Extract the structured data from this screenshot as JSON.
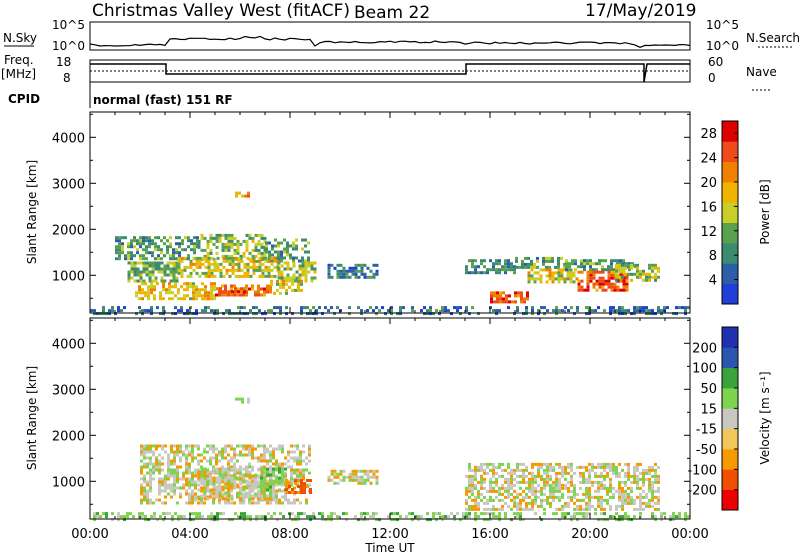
{
  "header": {
    "station": "Christmas Valley West (fitACF)",
    "beam": "Beam 22",
    "date": "17/May/2019"
  },
  "sky_panel": {
    "left_label": "N.Sky",
    "right_label": "N.Search",
    "left_ticks": [
      "10^5",
      "10^0"
    ],
    "right_ticks": [
      "10^5",
      "10^0"
    ]
  },
  "freq_panel": {
    "left_label_1": "Freq.",
    "left_label_2": "[MHz]",
    "right_label": "Nave",
    "left_ticks": [
      "18",
      "8"
    ],
    "right_ticks": [
      "60",
      "0"
    ]
  },
  "cpid": {
    "label": "CPID",
    "value": "normal (fast) 151 RF"
  },
  "colors": {
    "power": [
      "#1f3fd6",
      "#2d5ea8",
      "#3b8c6e",
      "#59a14f",
      "#c8cf2a",
      "#f0b400",
      "#f08000",
      "#ee4a1a",
      "#dd0000"
    ],
    "velocity": [
      "#ee0000",
      "#f05000",
      "#f59a00",
      "#f2c75a",
      "#c8c8c0",
      "#7ed34f",
      "#3aa33c",
      "#2a56b0",
      "#2030b0"
    ]
  },
  "chart_data": [
    {
      "type": "heatmap",
      "name": "power",
      "ylabel": "Slant Range [km]",
      "xlabel": "",
      "x_ticks": [
        "00:00",
        "04:00",
        "08:00",
        "12:00",
        "16:00",
        "20:00",
        "00:00"
      ],
      "y_ticks": [
        "1000",
        "2000",
        "3000",
        "4000"
      ],
      "y_tick_values": [
        1000,
        2000,
        3000,
        4000
      ],
      "xlim_hours": [
        0,
        24
      ],
      "ylim_km": [
        180,
        4550
      ],
      "colorbar": {
        "label": "Power [dB]",
        "ticks": [
          "4",
          "8",
          "12",
          "16",
          "20",
          "24",
          "28"
        ],
        "tick_values": [
          4,
          8,
          12,
          16,
          20,
          24,
          28
        ],
        "range": [
          0,
          30
        ]
      },
      "regions": [
        {
          "t0": 1.0,
          "t1": 4.3,
          "r0": 1350,
          "r1": 1850,
          "level": 10
        },
        {
          "t0": 4.3,
          "t1": 7.0,
          "r0": 1350,
          "r1": 1900,
          "level": 13
        },
        {
          "t0": 7.0,
          "t1": 8.8,
          "r0": 1300,
          "r1": 1800,
          "level": 11
        },
        {
          "t0": 1.5,
          "t1": 3.5,
          "r0": 850,
          "r1": 1300,
          "level": 12
        },
        {
          "t0": 3.5,
          "t1": 7.5,
          "r0": 1000,
          "r1": 1400,
          "level": 16
        },
        {
          "t0": 7.5,
          "t1": 9.0,
          "r0": 900,
          "r1": 1300,
          "level": 14
        },
        {
          "t0": 1.8,
          "t1": 5.0,
          "r0": 500,
          "r1": 850,
          "level": 18
        },
        {
          "t0": 5.0,
          "t1": 7.2,
          "r0": 550,
          "r1": 800,
          "level": 22
        },
        {
          "t0": 7.2,
          "t1": 8.5,
          "r0": 600,
          "r1": 900,
          "level": 17
        },
        {
          "t0": 4.8,
          "t1": 6.2,
          "r0": 650,
          "r1": 740,
          "level": 26
        },
        {
          "t0": 5.8,
          "t1": 6.4,
          "r0": 2700,
          "r1": 2820,
          "level": 21
        },
        {
          "t0": 9.5,
          "t1": 11.5,
          "r0": 950,
          "r1": 1250,
          "level": 7
        },
        {
          "t0": 15.0,
          "t1": 17.0,
          "r0": 1050,
          "r1": 1350,
          "level": 9
        },
        {
          "t0": 16.0,
          "t1": 17.5,
          "r0": 400,
          "r1": 650,
          "level": 24
        },
        {
          "t0": 17.0,
          "t1": 19.0,
          "r0": 1150,
          "r1": 1400,
          "level": 11
        },
        {
          "t0": 17.5,
          "t1": 19.5,
          "r0": 850,
          "r1": 1150,
          "level": 17
        },
        {
          "t0": 19.0,
          "t1": 21.8,
          "r0": 1150,
          "r1": 1350,
          "level": 10
        },
        {
          "t0": 19.5,
          "t1": 21.5,
          "r0": 700,
          "r1": 1100,
          "level": 24
        },
        {
          "t0": 21.0,
          "t1": 22.8,
          "r0": 900,
          "r1": 1250,
          "level": 14
        },
        {
          "t0": 0.0,
          "t1": 24.0,
          "r0": 180,
          "r1": 330,
          "level": 6
        }
      ]
    },
    {
      "type": "heatmap",
      "name": "velocity",
      "ylabel": "Slant Range [km]",
      "xlabel": "Time UT",
      "x_ticks": [
        "00:00",
        "04:00",
        "08:00",
        "12:00",
        "16:00",
        "20:00",
        "00:00"
      ],
      "y_ticks": [
        "1000",
        "2000",
        "3000",
        "4000"
      ],
      "y_tick_values": [
        1000,
        2000,
        3000,
        4000
      ],
      "xlim_hours": [
        0,
        24
      ],
      "ylim_km": [
        180,
        4550
      ],
      "colorbar": {
        "label": "Velocity [m s⁻¹]",
        "ticks": [
          "200",
          "100",
          "50",
          "15",
          "-15",
          "-50",
          "-100",
          "-200"
        ],
        "tick_values": [
          200,
          100,
          50,
          15,
          -15,
          -50,
          -100,
          -200
        ]
      },
      "regions": [
        {
          "t0": 2.0,
          "t1": 8.8,
          "r0": 500,
          "r1": 1800,
          "level": 0
        },
        {
          "t0": 4.3,
          "t1": 7.3,
          "r0": 600,
          "r1": 1300,
          "level": 0
        },
        {
          "t0": 6.8,
          "t1": 7.8,
          "r0": 700,
          "r1": 1300,
          "level": 40
        },
        {
          "t0": 7.8,
          "t1": 8.8,
          "r0": 750,
          "r1": 1050,
          "level": -60
        },
        {
          "t0": 5.8,
          "t1": 6.4,
          "r0": 2700,
          "r1": 2820,
          "level": 20
        },
        {
          "t0": 9.5,
          "t1": 11.5,
          "r0": 950,
          "r1": 1250,
          "level": 0
        },
        {
          "t0": 15.0,
          "t1": 22.8,
          "r0": 400,
          "r1": 1400,
          "level": 0
        },
        {
          "t0": 0.0,
          "t1": 24.0,
          "r0": 180,
          "r1": 330,
          "level": 30
        }
      ]
    }
  ]
}
